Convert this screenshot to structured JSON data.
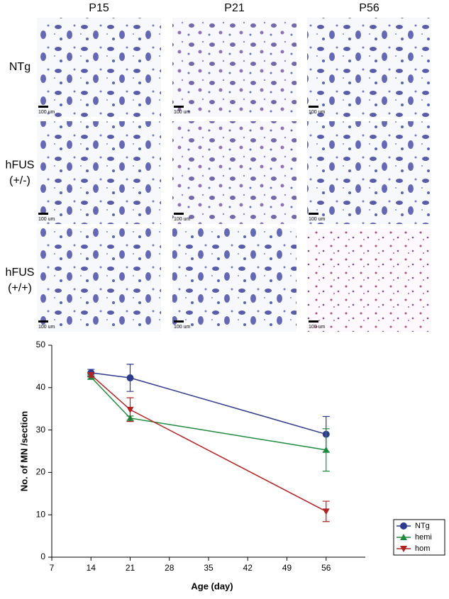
{
  "micrographs": {
    "columns": [
      "P15",
      "P21",
      "P56"
    ],
    "rows": [
      "NTg",
      "hFUS\n(+/-)",
      "hFUS\n(+/+)"
    ],
    "scale_bar_label": "100 um"
  },
  "chart_data": {
    "type": "line",
    "x": [
      14,
      21,
      56
    ],
    "series": [
      {
        "name": "NTg",
        "color": "#2e3a8c",
        "marker": "circle",
        "values": [
          43.5,
          42.3,
          29
        ],
        "errors": [
          0.8,
          3.2,
          4.2
        ]
      },
      {
        "name": "hemi",
        "color": "#1e8a3c",
        "marker": "triangle-up",
        "values": [
          42.5,
          32.8,
          25.3
        ],
        "errors": [
          0.5,
          0.5,
          5
        ]
      },
      {
        "name": "hom",
        "color": "#b22222",
        "marker": "triangle-down",
        "values": [
          43,
          34.8,
          10.8
        ],
        "errors": [
          0.5,
          2.8,
          2.4
        ]
      }
    ],
    "xlabel": "Age (day)",
    "ylabel": "No. of MN /section",
    "xlim": [
      7,
      63
    ],
    "xticks": [
      7,
      14,
      21,
      28,
      35,
      42,
      49,
      56
    ],
    "ylim": [
      0,
      50
    ],
    "yticks": [
      0,
      10,
      20,
      30,
      40,
      50
    ],
    "legend": "lower right"
  }
}
